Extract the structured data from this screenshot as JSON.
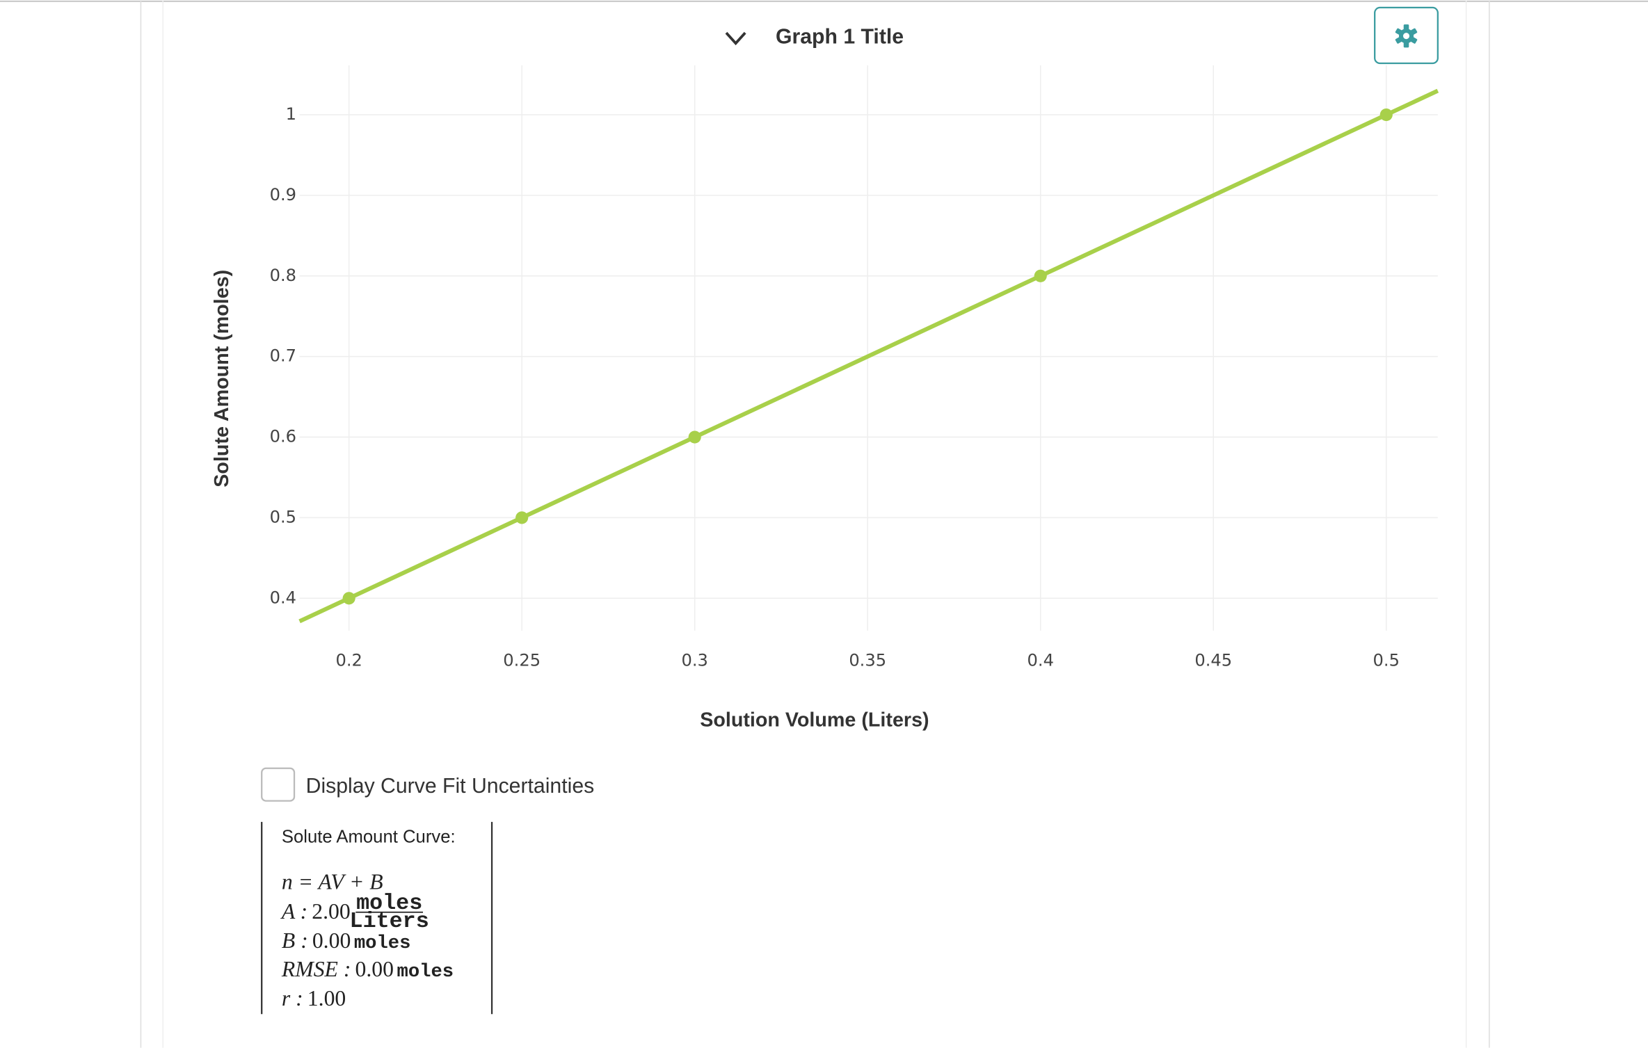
{
  "chart_data": {
    "type": "scatter",
    "title": "Graph 1 Title",
    "x_label": "Solution Volume (Liters)",
    "y_label": "Solute Amount (moles)",
    "xlim": [
      0.1857,
      0.5149
    ],
    "ylim": [
      0.3598,
      1.0613
    ],
    "xticks": [
      0.2,
      0.25,
      0.3,
      0.35,
      0.4,
      0.45,
      0.5
    ],
    "yticks": [
      0.4,
      0.5,
      0.6,
      0.7,
      0.8,
      0.9,
      1
    ],
    "grid": true,
    "series": [
      {
        "mode": "line",
        "color": "#a8d04a",
        "x": [
          0.1857,
          0.5149
        ],
        "values": [
          0.3714,
          1.0298
        ]
      },
      {
        "mode": "markers",
        "color": "#a8d04a",
        "x": [
          0.2,
          0.25,
          0.3,
          0.4,
          0.5
        ],
        "values": [
          0.4,
          0.5,
          0.6,
          0.8,
          1
        ]
      }
    ]
  },
  "controls": {
    "checkbox_label": "Display Curve Fit Uncertainties"
  },
  "fit": {
    "heading": "Solute Amount Curve:",
    "equation": "n = AV + B",
    "params": [
      {
        "label": "A :",
        "value": "2.00",
        "unit_numerator": "moles",
        "unit_denominator": "Liters"
      },
      {
        "label": "B :",
        "value": "0.00",
        "unit": "moles"
      },
      {
        "label": "RMSE :",
        "value": "0.00",
        "unit": "moles"
      },
      {
        "label": "r :",
        "value": "1.00"
      }
    ]
  }
}
